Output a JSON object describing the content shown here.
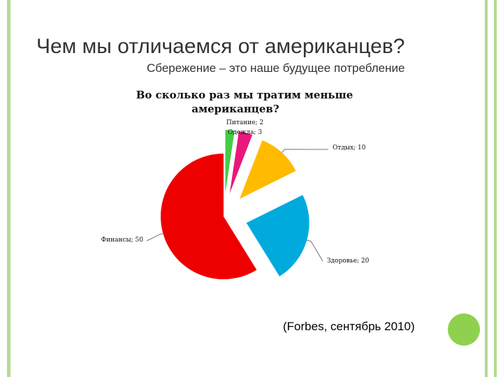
{
  "slide": {
    "title": "Чем мы отличаемся от американцев?",
    "subtitle": "Сбережение – это наше будущее потребление",
    "source": "(Forbes, сентябрь 2010)",
    "accent_color": "#8fd14f",
    "frame_color": "#b5db8f"
  },
  "chart_data": {
    "type": "pie",
    "title_lines": [
      "Во сколько раз мы тратим меньше",
      "американцев?"
    ],
    "slices": [
      {
        "name": "Питание",
        "value": 2,
        "label": "Питание; 2",
        "color": "#44cc44",
        "exploded": true
      },
      {
        "name": "Одежда",
        "value": 3,
        "label": "Одежда; 3",
        "color": "#e8197d",
        "exploded": true
      },
      {
        "name": "Отдых",
        "value": 10,
        "label": "Отдых; 10",
        "color": "#ffbb00",
        "exploded": true
      },
      {
        "name": "Здоровье",
        "value": 20,
        "label": "Здоровье; 20",
        "color": "#00aadd",
        "exploded": true
      },
      {
        "name": "Финансы",
        "value": 50,
        "label": "Финансы; 50",
        "color": "#ee0000",
        "exploded": false
      }
    ],
    "start": "12 o'clock",
    "direction": "clockwise",
    "legend": "none",
    "data_labels": "category; value"
  }
}
